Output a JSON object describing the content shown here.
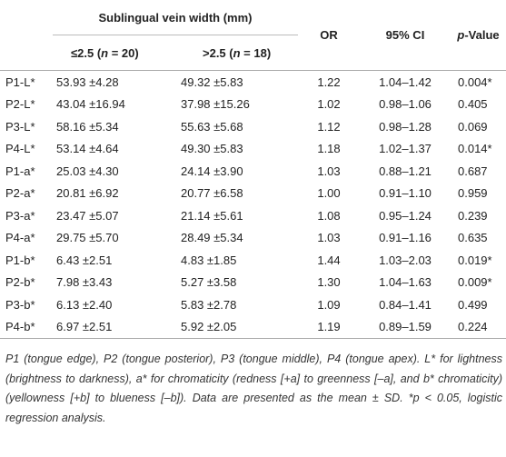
{
  "table": {
    "header": {
      "group": "Sublingual vein width (mm)",
      "or": "OR",
      "ci": "95% CI",
      "p": {
        "var": "p",
        "suffix": "-Value"
      },
      "sub": [
        {
          "prefix": "≤2.5 (",
          "var": "n",
          "suffix": " = 20)"
        },
        {
          "prefix": ">2.5 (",
          "var": "n",
          "suffix": " = 18)"
        }
      ]
    },
    "rows": [
      [
        "P1-L*",
        "53.93 ±4.28",
        "49.32 ±5.83",
        "1.22",
        "1.04–1.42",
        "0.004*"
      ],
      [
        "P2-L*",
        "43.04 ±16.94",
        "37.98 ±15.26",
        "1.02",
        "0.98–1.06",
        "0.405"
      ],
      [
        "P3-L*",
        "58.16 ±5.34",
        "55.63 ±5.68",
        "1.12",
        "0.98–1.28",
        "0.069"
      ],
      [
        "P4-L*",
        "53.14 ±4.64",
        "49.30 ±5.83",
        "1.18",
        "1.02–1.37",
        "0.014*"
      ],
      [
        "P1-a*",
        "25.03 ±4.30",
        "24.14 ±3.90",
        "1.03",
        "0.88–1.21",
        "0.687"
      ],
      [
        "P2-a*",
        "20.81 ±6.92",
        "20.77 ±6.58",
        "1.00",
        "0.91–1.10",
        "0.959"
      ],
      [
        "P3-a*",
        "23.47 ±5.07",
        "21.14 ±5.61",
        "1.08",
        "0.95–1.24",
        "0.239"
      ],
      [
        "P4-a*",
        "29.75 ±5.70",
        "28.49 ±5.34",
        "1.03",
        "0.91–1.16",
        "0.635"
      ],
      [
        "P1-b*",
        "6.43 ±2.51",
        "4.83 ±1.85",
        "1.44",
        "1.03–2.03",
        "0.019*"
      ],
      [
        "P2-b*",
        "7.98 ±3.43",
        "5.27 ±3.58",
        "1.30",
        "1.04–1.63",
        "0.009*"
      ],
      [
        "P3-b*",
        "6.13 ±2.40",
        "5.83 ±2.78",
        "1.09",
        "0.84–1.41",
        "0.499"
      ],
      [
        "P4-b*",
        "6.97 ±2.51",
        "5.92 ±2.05",
        "1.19",
        "0.89–1.59",
        "0.224"
      ]
    ],
    "footnote": "P1 (tongue edge), P2 (tongue posterior), P3 (tongue middle), P4 (tongue apex). L* for lightness (brightness to darkness), a* for chromaticity (redness [+a] to greenness [–a], and b* chromaticity) (yellowness [+b] to blueness [–b]). Data are presented as the mean ± SD. *p < 0.05, logistic regression analysis."
  }
}
